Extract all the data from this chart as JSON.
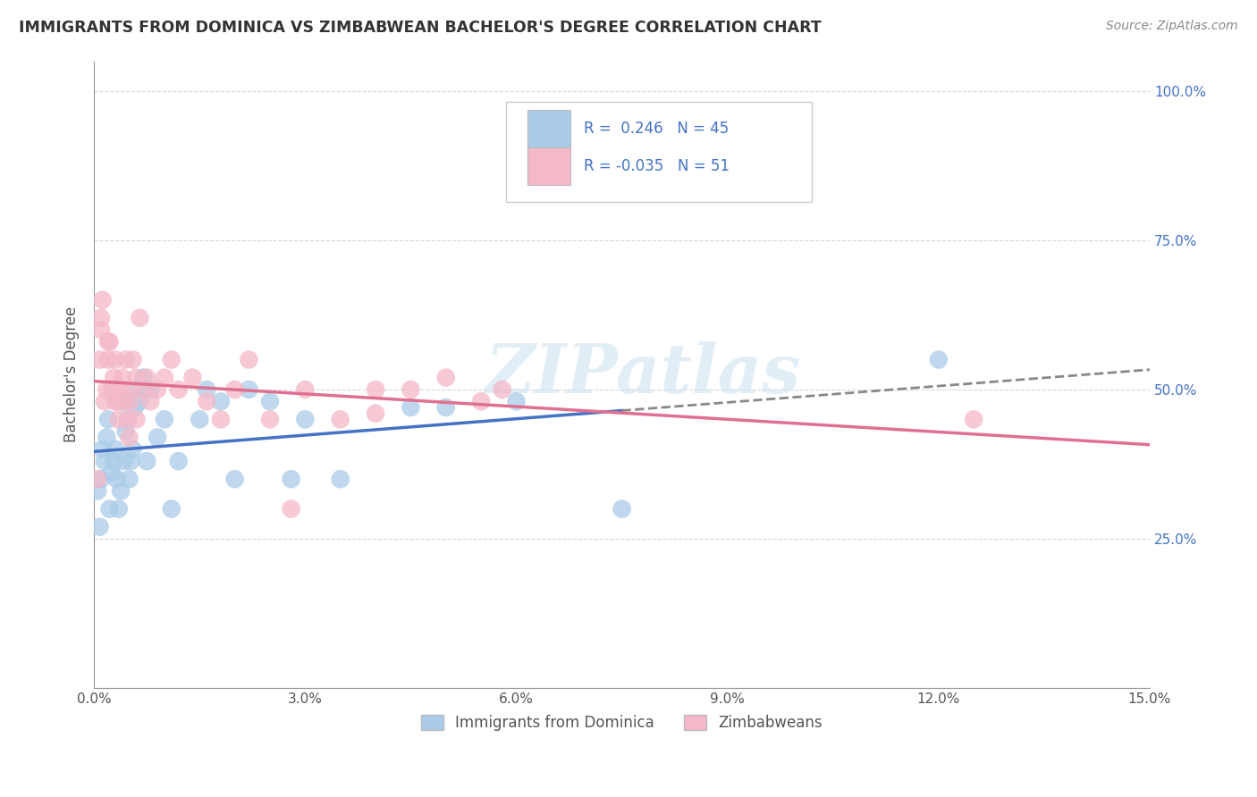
{
  "title": "IMMIGRANTS FROM DOMINICA VS ZIMBABWEAN BACHELOR'S DEGREE CORRELATION CHART",
  "source_text": "Source: ZipAtlas.com",
  "ylabel": "Bachelor's Degree",
  "xlim": [
    0.0,
    15.0
  ],
  "ylim": [
    0.0,
    105.0
  ],
  "yticks": [
    0,
    25,
    50,
    75,
    100
  ],
  "ytick_labels_right": [
    "",
    "25.0%",
    "50.0%",
    "75.0%",
    "100.0%"
  ],
  "xticks": [
    0,
    3,
    6,
    9,
    12,
    15
  ],
  "xtick_labels": [
    "0.0%",
    "3.0%",
    "6.0%",
    "9.0%",
    "12.0%",
    "15.0%"
  ],
  "series1_label": "Immigrants from Dominica",
  "series1_color": "#aacce8",
  "series1_line_color": "#4472C4",
  "series1_R": "0.246",
  "series1_N": "45",
  "series2_label": "Zimbabweans",
  "series2_color": "#f4b8c8",
  "series2_line_color": "#e07090",
  "series2_R": "-0.035",
  "series2_N": "51",
  "legend_color": "#4472C4",
  "watermark": "ZIPatlas",
  "background_color": "#ffffff",
  "grid_color": "#cccccc",
  "title_color": "#333333",
  "source_color": "#888888",
  "series1_x": [
    0.05,
    0.08,
    0.1,
    0.12,
    0.15,
    0.18,
    0.2,
    0.22,
    0.25,
    0.28,
    0.3,
    0.32,
    0.35,
    0.38,
    0.4,
    0.42,
    0.45,
    0.48,
    0.5,
    0.52,
    0.55,
    0.58,
    0.6,
    0.65,
    0.7,
    0.75,
    0.8,
    0.9,
    1.0,
    1.1,
    1.2,
    1.5,
    1.6,
    1.8,
    2.0,
    2.2,
    2.5,
    2.8,
    3.0,
    3.5,
    4.5,
    5.0,
    6.0,
    7.5,
    12.0
  ],
  "series1_y": [
    33,
    27,
    35,
    40,
    38,
    42,
    45,
    30,
    36,
    38,
    40,
    35,
    30,
    33,
    48,
    38,
    43,
    45,
    35,
    38,
    40,
    47,
    50,
    48,
    52,
    38,
    50,
    42,
    45,
    30,
    38,
    45,
    50,
    48,
    35,
    50,
    48,
    35,
    45,
    35,
    47,
    47,
    48,
    30,
    55
  ],
  "series2_x": [
    0.05,
    0.08,
    0.1,
    0.12,
    0.15,
    0.18,
    0.2,
    0.22,
    0.25,
    0.28,
    0.3,
    0.32,
    0.35,
    0.38,
    0.4,
    0.42,
    0.45,
    0.48,
    0.5,
    0.52,
    0.55,
    0.6,
    0.65,
    0.7,
    0.75,
    0.8,
    0.9,
    1.0,
    1.1,
    1.2,
    1.4,
    1.6,
    1.8,
    2.0,
    2.2,
    2.5,
    2.8,
    3.0,
    3.5,
    4.0,
    4.5,
    5.0,
    5.5,
    5.8,
    0.1,
    0.2,
    0.3,
    0.5,
    0.6,
    12.5,
    4.0
  ],
  "series2_y": [
    35,
    55,
    60,
    65,
    48,
    50,
    55,
    58,
    50,
    52,
    55,
    48,
    45,
    50,
    52,
    48,
    55,
    45,
    50,
    48,
    55,
    52,
    62,
    50,
    52,
    48,
    50,
    52,
    55,
    50,
    52,
    48,
    45,
    50,
    55,
    45,
    30,
    50,
    45,
    50,
    50,
    52,
    48,
    50,
    62,
    58,
    48,
    42,
    45,
    45,
    46
  ],
  "dash_start_x": 7.5
}
